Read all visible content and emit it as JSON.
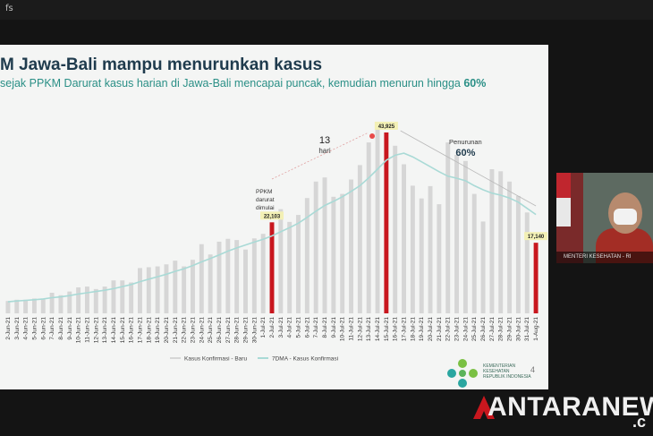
{
  "window": {
    "title": "fs"
  },
  "slide": {
    "title": "M Jawa-Bali mampu menurunkan kasus",
    "subtitle_prefix": "sejak PPKM Darurat kasus harian di Jawa-Bali mencapai puncak, kemudian menurun hingga ",
    "subtitle_highlight": "60%",
    "page_number": "4",
    "logo_text": "KEMENTERIAN KESEHATAN REPUBLIK INDONESIA"
  },
  "video": {
    "caption": "MENTERI KESEHATAN - RI"
  },
  "watermark": {
    "text": "ANTARANEW",
    "tail": ".c"
  },
  "colors": {
    "bar": "#d6d6d6",
    "highlight_bar": "#c8171e",
    "line": "#a9dad6",
    "accent": "#2a8f86",
    "title": "#1f3b4d"
  },
  "chart_data": {
    "type": "bar",
    "categories": [
      "2-Jun-21",
      "3-Jun-21",
      "4-Jun-21",
      "5-Jun-21",
      "6-Jun-21",
      "7-Jun-21",
      "8-Jun-21",
      "9-Jun-21",
      "10-Jun-21",
      "11-Jun-21",
      "12-Jun-21",
      "13-Jun-21",
      "14-Jun-21",
      "15-Jun-21",
      "16-Jun-21",
      "17-Jun-21",
      "18-Jun-21",
      "19-Jun-21",
      "20-Jun-21",
      "21-Jun-21",
      "22-Jun-21",
      "23-Jun-21",
      "24-Jun-21",
      "25-Jun-21",
      "26-Jun-21",
      "27-Jun-21",
      "28-Jun-21",
      "29-Jun-21",
      "30-Jun-21",
      "1-Jul-21",
      "2-Jul-21",
      "3-Jul-21",
      "4-Jul-21",
      "5-Jul-21",
      "6-Jul-21",
      "7-Jul-21",
      "8-Jul-21",
      "9-Jul-21",
      "10-Jul-21",
      "11-Jul-21",
      "12-Jul-21",
      "13-Jul-21",
      "14-Jul-21",
      "15-Jul-21",
      "16-Jul-21",
      "17-Jul-21",
      "18-Jul-21",
      "19-Jul-21",
      "20-Jul-21",
      "21-Jul-21",
      "22-Jul-21",
      "23-Jul-21",
      "24-Jul-21",
      "25-Jul-21",
      "26-Jul-21",
      "27-Jul-21",
      "28-Jul-21",
      "29-Jul-21",
      "30-Jul-21",
      "31-Jul-21",
      "1-Aug-21"
    ],
    "series": [
      {
        "name": "Kasus Konfirmasi - Baru",
        "values": [
          3000,
          3300,
          3300,
          3600,
          3400,
          5000,
          4400,
          5300,
          6300,
          6500,
          5900,
          6500,
          8000,
          8000,
          7500,
          11000,
          11200,
          11400,
          11900,
          12800,
          11400,
          13000,
          16800,
          14300,
          17400,
          18100,
          17800,
          15500,
          18200,
          19300,
          22103,
          25300,
          22200,
          23900,
          28000,
          32000,
          33000,
          28300,
          29000,
          32500,
          36000,
          41500,
          45500,
          43925,
          40700,
          36200,
          31000,
          27900,
          30900,
          26500,
          41500,
          38500,
          37000,
          29000,
          22300,
          35000,
          34500,
          32000,
          28500,
          24500,
          17140
        ]
      },
      {
        "name": "7DMA - Kasus Konfirmasi",
        "values": [
          2800,
          3000,
          3150,
          3300,
          3500,
          3800,
          4000,
          4300,
          4700,
          5000,
          5300,
          5600,
          6000,
          6500,
          7000,
          7700,
          8300,
          8900,
          9500,
          10200,
          10800,
          11600,
          12500,
          13300,
          14200,
          15100,
          15900,
          16600,
          17300,
          18000,
          18800,
          19800,
          20800,
          21900,
          23300,
          24800,
          26200,
          27200,
          28300,
          29600,
          31000,
          32900,
          35000,
          37200,
          38400,
          38900,
          38000,
          36800,
          35600,
          34400,
          33300,
          32800,
          32200,
          31000,
          30000,
          29200,
          28700,
          28000,
          27000,
          25500,
          24000
        ]
      }
    ],
    "highlight_indices": [
      30,
      43,
      60
    ],
    "data_labels": [
      {
        "index": 30,
        "text": "22,103"
      },
      {
        "index": 43,
        "text": "43,925"
      },
      {
        "index": 60,
        "text": "17,140"
      }
    ],
    "annotations": [
      {
        "text": "PPKM darurat dimulai",
        "index": 30
      },
      {
        "text": "13",
        "text2": "hari",
        "index": 36
      },
      {
        "text": "Penurunan",
        "text2": "60%",
        "index": 52
      }
    ],
    "ylim": [
      0,
      50000
    ],
    "legend_position": "bottom-center",
    "grid": false
  }
}
